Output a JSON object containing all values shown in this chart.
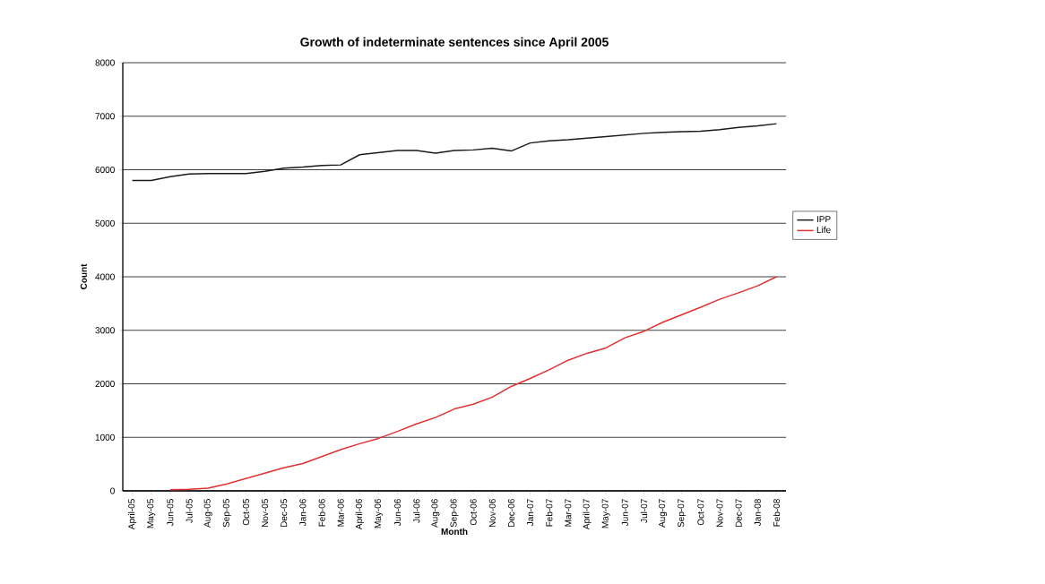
{
  "chart_data": {
    "type": "line",
    "title": "Growth of indeterminate sentences since April 2005",
    "xlabel": "Month",
    "ylabel": "Count",
    "categories": [
      "April-05",
      "May-05",
      "Jun-05",
      "Jul-05",
      "Aug-05",
      "Sep-05",
      "Oct-05",
      "Nov-05",
      "Dec-05",
      "Jan-06",
      "Feb-06",
      "Mar-06",
      "April-06",
      "May-06",
      "Jun-06",
      "Jul-06",
      "Aug-06",
      "Sep-06",
      "Oct-06",
      "Nov-06",
      "Dec-06",
      "Jan-07",
      "Feb-07",
      "Mar-07",
      "April-07",
      "May-07",
      "Jun-07",
      "Jul-07",
      "Aug-07",
      "Sep-07",
      "Oct-07",
      "Nov-07",
      "Dec-07",
      "Jan-08",
      "Feb-08"
    ],
    "series": [
      {
        "name": "IPP",
        "color": "#1a1a1a",
        "values": [
          5800,
          5800,
          5870,
          5920,
          5930,
          5930,
          5930,
          5970,
          6030,
          6050,
          6080,
          6090,
          6280,
          6320,
          6360,
          6360,
          6310,
          6360,
          6370,
          6400,
          6350,
          6500,
          6540,
          6560,
          6590,
          6620,
          6650,
          6680,
          6700,
          6710,
          6720,
          6750,
          6790,
          6820,
          6860
        ]
      },
      {
        "name": "Life",
        "color": "#e03030",
        "values": [
          null,
          null,
          20,
          30,
          50,
          130,
          230,
          330,
          430,
          510,
          640,
          770,
          880,
          980,
          1110,
          1250,
          1370,
          1530,
          1620,
          1750,
          1950,
          2100,
          2260,
          2440,
          2570,
          2670,
          2860,
          2980,
          3150,
          3290,
          3430,
          3580,
          3700,
          3830,
          4000
        ]
      }
    ],
    "ylim": [
      0,
      8000
    ],
    "yticks": [
      0,
      1000,
      2000,
      3000,
      4000,
      5000,
      6000,
      7000,
      8000
    ],
    "grid": "y",
    "legend": "right",
    "line_style": "solid"
  }
}
